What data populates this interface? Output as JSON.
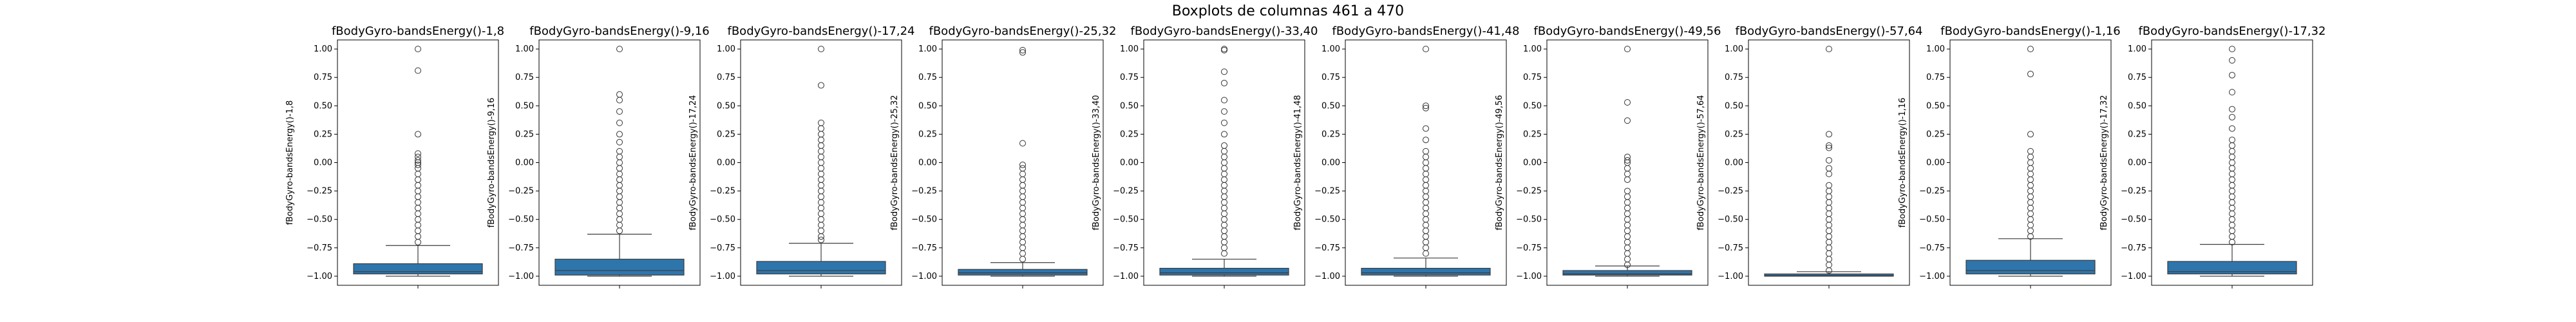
{
  "figure": {
    "suptitle": "Boxplots de columnas 461 a 470",
    "box_color": "#2e75ac",
    "outlier_color": "#333333"
  },
  "chart_data": [
    {
      "type": "box",
      "title": "fBodyGyro-bandsEnergy()-1,8",
      "ylabel": "fBodyGyro-bandsEnergy()-1,8",
      "ylim": [
        -1.08,
        1.08
      ],
      "yticks": [
        -1.0,
        -0.75,
        -0.5,
        -0.25,
        0.0,
        0.25,
        0.5,
        0.75,
        1.0
      ],
      "box": {
        "q1": -0.98,
        "median": -0.96,
        "q3": -0.89,
        "whisker_low": -1.0,
        "whisker_high": -0.73
      },
      "outliers": [
        1.0,
        0.81,
        0.25,
        0.08,
        0.05,
        0.02,
        0.0,
        -0.02,
        -0.05,
        -0.1,
        -0.15,
        -0.2,
        -0.25,
        -0.3,
        -0.35,
        -0.4,
        -0.45,
        -0.5,
        -0.55,
        -0.6,
        -0.65,
        -0.7
      ]
    },
    {
      "type": "box",
      "title": "fBodyGyro-bandsEnergy()-9,16",
      "ylabel": "fBodyGyro-bandsEnergy()-9,16",
      "ylim": [
        -1.08,
        1.08
      ],
      "yticks": [
        -1.0,
        -0.75,
        -0.5,
        -0.25,
        0.0,
        0.25,
        0.5,
        0.75,
        1.0
      ],
      "box": {
        "q1": -0.99,
        "median": -0.95,
        "q3": -0.85,
        "whisker_low": -1.0,
        "whisker_high": -0.63
      },
      "outliers": [
        1.0,
        0.6,
        0.55,
        0.45,
        0.35,
        0.25,
        0.18,
        0.1,
        0.05,
        0.0,
        -0.05,
        -0.1,
        -0.15,
        -0.2,
        -0.25,
        -0.3,
        -0.35,
        -0.4,
        -0.45,
        -0.5,
        -0.55,
        -0.6
      ]
    },
    {
      "type": "box",
      "title": "fBodyGyro-bandsEnergy()-17,24",
      "ylabel": "fBodyGyro-bandsEnergy()-17,24",
      "ylim": [
        -1.08,
        1.08
      ],
      "yticks": [
        -1.0,
        -0.75,
        -0.5,
        -0.25,
        0.0,
        0.25,
        0.5,
        0.75,
        1.0
      ],
      "box": {
        "q1": -0.98,
        "median": -0.95,
        "q3": -0.87,
        "whisker_low": -1.0,
        "whisker_high": -0.71
      },
      "outliers": [
        1.0,
        0.68,
        0.35,
        0.3,
        0.25,
        0.2,
        0.15,
        0.1,
        0.05,
        0.0,
        -0.05,
        -0.1,
        -0.15,
        -0.2,
        -0.25,
        -0.3,
        -0.35,
        -0.4,
        -0.45,
        -0.5,
        -0.55,
        -0.6,
        -0.65,
        -0.68
      ]
    },
    {
      "type": "box",
      "title": "fBodyGyro-bandsEnergy()-25,32",
      "ylabel": "fBodyGyro-bandsEnergy()-25,32",
      "ylim": [
        -1.08,
        1.08
      ],
      "yticks": [
        -1.0,
        -0.75,
        -0.5,
        -0.25,
        0.0,
        0.25,
        0.5,
        0.75,
        1.0
      ],
      "box": {
        "q1": -0.99,
        "median": -0.97,
        "q3": -0.94,
        "whisker_low": -1.0,
        "whisker_high": -0.88
      },
      "outliers": [
        0.99,
        0.97,
        0.17,
        -0.02,
        -0.05,
        -0.1,
        -0.15,
        -0.2,
        -0.25,
        -0.3,
        -0.35,
        -0.4,
        -0.45,
        -0.5,
        -0.55,
        -0.6,
        -0.65,
        -0.7,
        -0.75,
        -0.8,
        -0.85
      ]
    },
    {
      "type": "box",
      "title": "fBodyGyro-bandsEnergy()-33,40",
      "ylabel": "fBodyGyro-bandsEnergy()-33,40",
      "ylim": [
        -1.08,
        1.08
      ],
      "yticks": [
        -1.0,
        -0.75,
        -0.5,
        -0.25,
        0.0,
        0.25,
        0.5,
        0.75,
        1.0
      ],
      "box": {
        "q1": -0.99,
        "median": -0.97,
        "q3": -0.93,
        "whisker_low": -1.0,
        "whisker_high": -0.85
      },
      "outliers": [
        1.0,
        0.99,
        0.8,
        0.7,
        0.55,
        0.45,
        0.35,
        0.25,
        0.15,
        0.1,
        0.05,
        0.0,
        -0.05,
        -0.1,
        -0.15,
        -0.2,
        -0.25,
        -0.3,
        -0.35,
        -0.4,
        -0.45,
        -0.5,
        -0.55,
        -0.6,
        -0.65,
        -0.7,
        -0.75,
        -0.8
      ]
    },
    {
      "type": "box",
      "title": "fBodyGyro-bandsEnergy()-41,48",
      "ylabel": "fBodyGyro-bandsEnergy()-41,48",
      "ylim": [
        -1.08,
        1.08
      ],
      "yticks": [
        -1.0,
        -0.75,
        -0.5,
        -0.25,
        0.0,
        0.25,
        0.5,
        0.75,
        1.0
      ],
      "box": {
        "q1": -0.99,
        "median": -0.97,
        "q3": -0.93,
        "whisker_low": -1.0,
        "whisker_high": -0.84
      },
      "outliers": [
        1.0,
        0.5,
        0.48,
        0.3,
        0.2,
        0.1,
        0.05,
        0.0,
        -0.05,
        -0.1,
        -0.15,
        -0.2,
        -0.25,
        -0.3,
        -0.35,
        -0.4,
        -0.45,
        -0.5,
        -0.55,
        -0.6,
        -0.65,
        -0.7,
        -0.75,
        -0.8
      ]
    },
    {
      "type": "box",
      "title": "fBodyGyro-bandsEnergy()-49,56",
      "ylabel": "fBodyGyro-bandsEnergy()-49,56",
      "ylim": [
        -1.08,
        1.08
      ],
      "yticks": [
        -1.0,
        -0.75,
        -0.5,
        -0.25,
        0.0,
        0.25,
        0.5,
        0.75,
        1.0
      ],
      "box": {
        "q1": -0.99,
        "median": -0.98,
        "q3": -0.95,
        "whisker_low": -1.0,
        "whisker_high": -0.91
      },
      "outliers": [
        1.0,
        0.53,
        0.37,
        0.05,
        0.02,
        0.0,
        -0.05,
        -0.1,
        -0.15,
        -0.25,
        -0.3,
        -0.35,
        -0.4,
        -0.45,
        -0.5,
        -0.55,
        -0.6,
        -0.65,
        -0.7,
        -0.75,
        -0.8,
        -0.85,
        -0.9
      ]
    },
    {
      "type": "box",
      "title": "fBodyGyro-bandsEnergy()-57,64",
      "ylabel": "fBodyGyro-bandsEnergy()-57,64",
      "ylim": [
        -1.08,
        1.08
      ],
      "yticks": [
        -1.0,
        -0.75,
        -0.5,
        -0.25,
        0.0,
        0.25,
        0.5,
        0.75,
        1.0
      ],
      "box": {
        "q1": -1.0,
        "median": -0.995,
        "q3": -0.98,
        "whisker_low": -1.0,
        "whisker_high": -0.96
      },
      "outliers": [
        1.0,
        0.25,
        0.15,
        0.13,
        0.02,
        -0.05,
        -0.1,
        -0.2,
        -0.25,
        -0.3,
        -0.35,
        -0.4,
        -0.45,
        -0.5,
        -0.55,
        -0.6,
        -0.65,
        -0.7,
        -0.75,
        -0.8,
        -0.85,
        -0.9,
        -0.95
      ]
    },
    {
      "type": "box",
      "title": "fBodyGyro-bandsEnergy()-1,16",
      "ylabel": "fBodyGyro-bandsEnergy()-1,16",
      "ylim": [
        -1.08,
        1.08
      ],
      "yticks": [
        -1.0,
        -0.75,
        -0.5,
        -0.25,
        0.0,
        0.25,
        0.5,
        0.75,
        1.0
      ],
      "box": {
        "q1": -0.98,
        "median": -0.95,
        "q3": -0.86,
        "whisker_low": -1.0,
        "whisker_high": -0.67
      },
      "outliers": [
        1.0,
        0.78,
        0.25,
        0.1,
        0.05,
        0.0,
        -0.05,
        -0.1,
        -0.15,
        -0.2,
        -0.25,
        -0.3,
        -0.35,
        -0.4,
        -0.45,
        -0.5,
        -0.55,
        -0.6,
        -0.65
      ]
    },
    {
      "type": "box",
      "title": "fBodyGyro-bandsEnergy()-17,32",
      "ylabel": "fBodyGyro-bandsEnergy()-17,32",
      "ylim": [
        -1.08,
        1.08
      ],
      "yticks": [
        -1.0,
        -0.75,
        -0.5,
        -0.25,
        0.0,
        0.25,
        0.5,
        0.75,
        1.0
      ],
      "box": {
        "q1": -0.98,
        "median": -0.96,
        "q3": -0.87,
        "whisker_low": -1.0,
        "whisker_high": -0.72
      },
      "outliers": [
        1.0,
        0.9,
        0.77,
        0.62,
        0.47,
        0.4,
        0.3,
        0.2,
        0.15,
        0.1,
        0.05,
        0.0,
        -0.05,
        -0.1,
        -0.15,
        -0.2,
        -0.25,
        -0.3,
        -0.35,
        -0.4,
        -0.45,
        -0.5,
        -0.55,
        -0.6,
        -0.65,
        -0.7
      ]
    }
  ]
}
